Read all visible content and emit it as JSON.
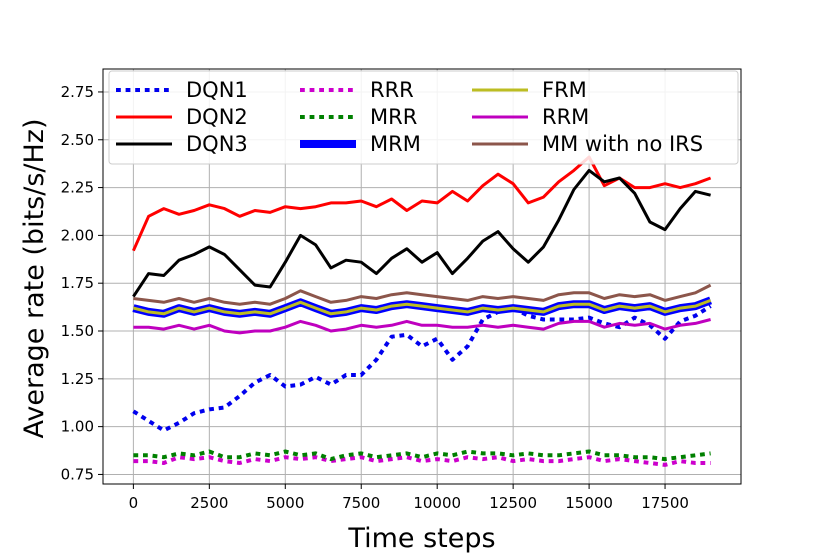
{
  "chart_data": {
    "type": "line",
    "xlabel": "Time steps",
    "ylabel": "Average rate (bits/s/Hz)",
    "xlim": [
      -1000,
      20000
    ],
    "ylim": [
      0.7,
      2.87
    ],
    "x_ticks": [
      0,
      2500,
      5000,
      7500,
      10000,
      12500,
      15000,
      17500
    ],
    "x_tick_labels": [
      "0",
      "2500",
      "5000",
      "7500",
      "10000",
      "12500",
      "15000",
      "17500"
    ],
    "y_ticks": [
      0.75,
      1.0,
      1.25,
      1.5,
      1.75,
      2.0,
      2.25,
      2.5,
      2.75
    ],
    "y_tick_labels": [
      "0.75",
      "1.00",
      "1.25",
      "1.50",
      "1.75",
      "2.00",
      "2.25",
      "2.50",
      "2.75"
    ],
    "grid": true,
    "legend_position": "top",
    "x": [
      0,
      500,
      1000,
      1500,
      2000,
      2500,
      3000,
      3500,
      4000,
      4500,
      5000,
      5500,
      6000,
      6500,
      7000,
      7500,
      8000,
      8500,
      9000,
      9500,
      10000,
      10500,
      11000,
      11500,
      12000,
      12500,
      13000,
      13500,
      14000,
      14500,
      15000,
      15500,
      16000,
      16500,
      17000,
      17500,
      18000,
      18500,
      19000
    ],
    "series": [
      {
        "name": "DQN1",
        "color": "#0000ee",
        "style": "dotted",
        "width": 4,
        "values": [
          1.08,
          1.03,
          0.98,
          1.02,
          1.07,
          1.09,
          1.1,
          1.16,
          1.23,
          1.27,
          1.21,
          1.22,
          1.26,
          1.22,
          1.27,
          1.27,
          1.35,
          1.47,
          1.48,
          1.42,
          1.46,
          1.35,
          1.42,
          1.56,
          1.6,
          1.62,
          1.58,
          1.56,
          1.56,
          1.56,
          1.57,
          1.54,
          1.52,
          1.57,
          1.53,
          1.46,
          1.55,
          1.58,
          1.63
        ]
      },
      {
        "name": "DQN2",
        "color": "#ff0000",
        "style": "solid",
        "width": 3,
        "values": [
          1.92,
          2.1,
          2.14,
          2.11,
          2.13,
          2.16,
          2.14,
          2.1,
          2.13,
          2.12,
          2.15,
          2.14,
          2.15,
          2.17,
          2.17,
          2.18,
          2.15,
          2.19,
          2.13,
          2.18,
          2.17,
          2.23,
          2.18,
          2.26,
          2.32,
          2.27,
          2.17,
          2.2,
          2.28,
          2.34,
          2.41,
          2.26,
          2.3,
          2.25,
          2.25,
          2.27,
          2.25,
          2.27,
          2.3
        ]
      },
      {
        "name": "DQN3",
        "color": "#000000",
        "style": "solid",
        "width": 3,
        "values": [
          1.68,
          1.8,
          1.79,
          1.87,
          1.9,
          1.94,
          1.9,
          1.82,
          1.74,
          1.73,
          1.86,
          2.0,
          1.95,
          1.83,
          1.87,
          1.86,
          1.8,
          1.88,
          1.93,
          1.86,
          1.91,
          1.8,
          1.88,
          1.97,
          2.02,
          1.93,
          1.86,
          1.94,
          2.08,
          2.24,
          2.34,
          2.28,
          2.3,
          2.22,
          2.07,
          2.03,
          2.14,
          2.23,
          2.21
        ]
      },
      {
        "name": "RRR",
        "color": "#cc00cc",
        "style": "dotted",
        "width": 4,
        "values": [
          0.82,
          0.82,
          0.81,
          0.84,
          0.83,
          0.84,
          0.82,
          0.81,
          0.83,
          0.82,
          0.84,
          0.83,
          0.84,
          0.82,
          0.83,
          0.84,
          0.82,
          0.83,
          0.84,
          0.82,
          0.83,
          0.82,
          0.84,
          0.83,
          0.84,
          0.82,
          0.83,
          0.82,
          0.82,
          0.83,
          0.84,
          0.82,
          0.83,
          0.82,
          0.81,
          0.8,
          0.82,
          0.81,
          0.81
        ]
      },
      {
        "name": "MRR",
        "color": "#008000",
        "style": "dotted",
        "width": 4,
        "values": [
          0.85,
          0.85,
          0.84,
          0.86,
          0.85,
          0.87,
          0.84,
          0.84,
          0.86,
          0.85,
          0.87,
          0.85,
          0.86,
          0.83,
          0.85,
          0.86,
          0.84,
          0.85,
          0.86,
          0.84,
          0.86,
          0.85,
          0.87,
          0.86,
          0.86,
          0.85,
          0.86,
          0.85,
          0.85,
          0.86,
          0.87,
          0.85,
          0.85,
          0.84,
          0.84,
          0.83,
          0.84,
          0.85,
          0.86
        ]
      },
      {
        "name": "MRM",
        "color": "#0000ff",
        "style": "solid",
        "width": 8,
        "values": [
          1.62,
          1.6,
          1.59,
          1.62,
          1.6,
          1.62,
          1.6,
          1.59,
          1.6,
          1.59,
          1.62,
          1.65,
          1.62,
          1.59,
          1.6,
          1.62,
          1.61,
          1.63,
          1.64,
          1.63,
          1.62,
          1.61,
          1.6,
          1.62,
          1.61,
          1.62,
          1.61,
          1.6,
          1.63,
          1.64,
          1.64,
          1.61,
          1.63,
          1.62,
          1.63,
          1.6,
          1.62,
          1.63,
          1.66
        ]
      },
      {
        "name": "FRM",
        "color": "#bcbd22",
        "style": "solid",
        "width": 3,
        "values": [
          1.62,
          1.6,
          1.59,
          1.62,
          1.6,
          1.62,
          1.6,
          1.59,
          1.6,
          1.59,
          1.62,
          1.65,
          1.62,
          1.59,
          1.6,
          1.62,
          1.61,
          1.63,
          1.64,
          1.63,
          1.62,
          1.61,
          1.6,
          1.62,
          1.61,
          1.62,
          1.61,
          1.6,
          1.63,
          1.64,
          1.64,
          1.61,
          1.63,
          1.62,
          1.63,
          1.6,
          1.62,
          1.63,
          1.66
        ]
      },
      {
        "name": "RRM",
        "color": "#bf00bf",
        "style": "solid",
        "width": 3,
        "values": [
          1.52,
          1.52,
          1.51,
          1.53,
          1.51,
          1.53,
          1.5,
          1.49,
          1.5,
          1.5,
          1.52,
          1.55,
          1.53,
          1.5,
          1.51,
          1.53,
          1.52,
          1.53,
          1.55,
          1.53,
          1.53,
          1.52,
          1.52,
          1.53,
          1.52,
          1.53,
          1.52,
          1.51,
          1.54,
          1.55,
          1.55,
          1.52,
          1.54,
          1.53,
          1.54,
          1.51,
          1.53,
          1.54,
          1.56
        ]
      },
      {
        "name": "MM with no IRS",
        "color": "#8c564b",
        "style": "solid",
        "width": 3,
        "values": [
          1.67,
          1.66,
          1.65,
          1.67,
          1.65,
          1.67,
          1.65,
          1.64,
          1.65,
          1.64,
          1.67,
          1.71,
          1.68,
          1.65,
          1.66,
          1.68,
          1.67,
          1.69,
          1.7,
          1.69,
          1.68,
          1.67,
          1.66,
          1.68,
          1.67,
          1.68,
          1.67,
          1.66,
          1.69,
          1.7,
          1.7,
          1.67,
          1.69,
          1.68,
          1.69,
          1.66,
          1.68,
          1.7,
          1.74
        ]
      }
    ]
  }
}
